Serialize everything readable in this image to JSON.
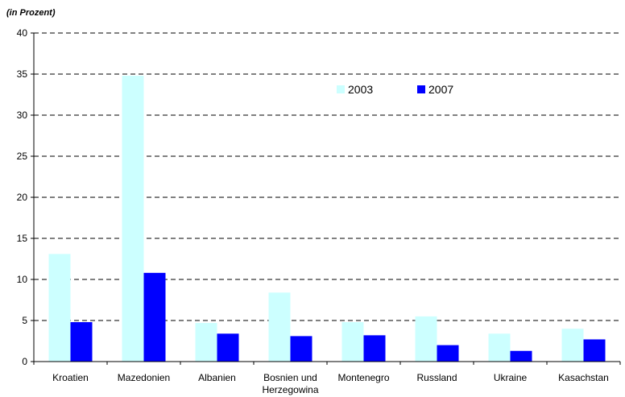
{
  "chart_data": {
    "type": "bar",
    "unit_label": "(in Prozent)",
    "categories": [
      "Kroatien",
      "Mazedonien",
      "Albanien",
      "Bosnien und Herzegowina",
      "Montenegro",
      "Russland",
      "Ukraine",
      "Kasachstan"
    ],
    "category_lines": [
      [
        "Kroatien"
      ],
      [
        "Mazedonien"
      ],
      [
        "Albanien"
      ],
      [
        "Bosnien und",
        "Herzegowina"
      ],
      [
        "Montenegro"
      ],
      [
        "Russland"
      ],
      [
        "Ukraine"
      ],
      [
        "Kasachstan"
      ]
    ],
    "series": [
      {
        "name": "2003",
        "color": "#ccffff",
        "values": [
          13.1,
          34.8,
          4.7,
          8.4,
          4.8,
          5.5,
          3.4,
          4.0
        ]
      },
      {
        "name": "2007",
        "color": "#0000ff",
        "values": [
          4.8,
          10.8,
          3.4,
          3.1,
          3.2,
          2.0,
          1.3,
          2.7
        ]
      }
    ],
    "ylim": [
      0,
      40
    ],
    "yticks": [
      0,
      5,
      10,
      15,
      20,
      25,
      30,
      35,
      40
    ],
    "grid": true,
    "grid_style": "dashed",
    "legend_position": "top-right"
  }
}
